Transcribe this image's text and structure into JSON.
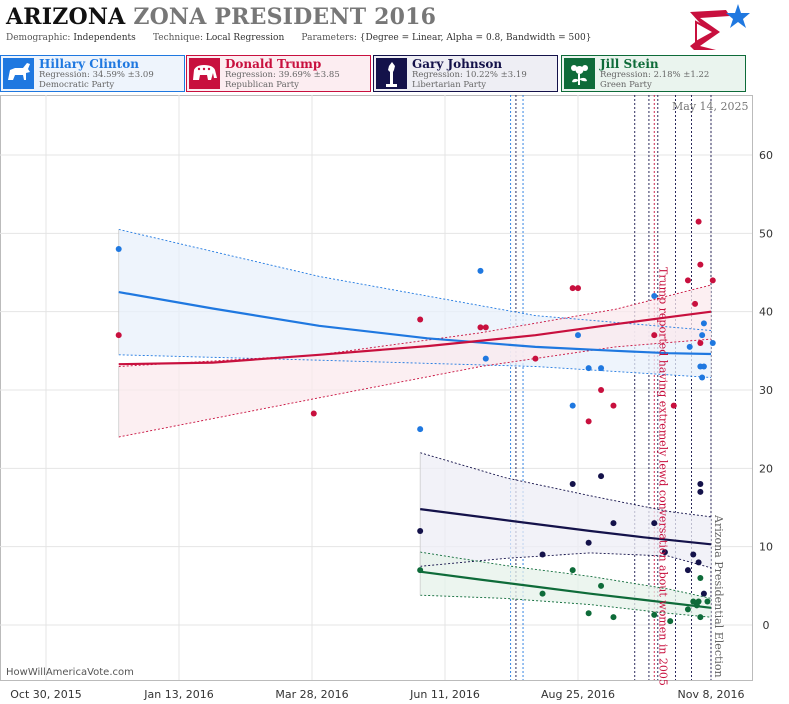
{
  "header": {
    "title_state": "ARIZONA",
    "title_rest": "ZONA PRESIDENT 2016",
    "demographic_label": "Demographic:",
    "demographic": "Independents",
    "technique_label": "Technique:",
    "technique": "Local Regression",
    "parameters_label": "Parameters:",
    "parameters": "{Degree = Linear, Alpha = 0.8, Bandwidth = 500}"
  },
  "candidates": [
    {
      "name": "Hillary Clinton",
      "regression": "Regression: 34.59% ±3.09",
      "party": "Democratic Party",
      "color": "#1f78e0",
      "bg": "#eef4fc",
      "icon": "donkey-icon"
    },
    {
      "name": "Donald Trump",
      "regression": "Regression: 39.69% ±3.85",
      "party": "Republican Party",
      "color": "#c8103e",
      "bg": "#fcedf1",
      "icon": "elephant-icon"
    },
    {
      "name": "Gary Johnson",
      "regression": "Regression: 10.22% ±3.19",
      "party": "Libertarian Party",
      "color": "#14124a",
      "bg": "#eeeef4",
      "icon": "liberty-torch-icon"
    },
    {
      "name": "Jill Stein",
      "regression": "Regression: 2.18% ±1.22",
      "party": "Green Party",
      "color": "#0e6b39",
      "bg": "#eaf4ee",
      "icon": "flower-icon"
    }
  ],
  "footer": {
    "watermark": "HowWillAmericaVote.com",
    "date": "May 14, 2025"
  },
  "chart_data": {
    "type": "scatter",
    "x_tick_labels": [
      "Oct 30, 2015",
      "Jan 13, 2016",
      "Mar 28, 2016",
      "Jun 11, 2016",
      "Aug 25, 2016",
      "Nov 8, 2016"
    ],
    "x_range": [
      "2015-10-30",
      "2016-11-08"
    ],
    "y_ticks": [
      0,
      10,
      20,
      30,
      40,
      50,
      60
    ],
    "ylim": [
      -4.5,
      65
    ],
    "annotations": [
      {
        "text": "Trump reported having extremely lewd conversation about women in 2005",
        "date": "2016-10-07",
        "color": "#c8103e"
      },
      {
        "text": "Arizona Presidential Election",
        "date": "2016-11-08",
        "color": "#666666"
      }
    ],
    "event_lines": [
      {
        "date": "2016-07-18",
        "color": "#1f78e0"
      },
      {
        "date": "2016-07-21",
        "color": "#14124a"
      },
      {
        "date": "2016-07-25",
        "color": "#1f78e0"
      },
      {
        "date": "2016-09-26",
        "color": "#14124a"
      },
      {
        "date": "2016-10-04",
        "color": "#14124a"
      },
      {
        "date": "2016-10-07",
        "color": "#c8103e"
      },
      {
        "date": "2016-10-09",
        "color": "#14124a"
      },
      {
        "date": "2016-10-19",
        "color": "#14124a"
      },
      {
        "date": "2016-10-28",
        "color": "#14124a"
      },
      {
        "date": "2016-11-08",
        "color": "#14124a"
      }
    ],
    "series": [
      {
        "name": "Hillary Clinton",
        "color": "#1f78e0",
        "band": "#e8f0fb",
        "points": [
          [
            "2015-12-10",
            48
          ],
          [
            "2016-05-28",
            25
          ],
          [
            "2016-07-01",
            45.2
          ],
          [
            "2016-07-04",
            34
          ],
          [
            "2016-08-25",
            37
          ],
          [
            "2016-08-31",
            32.8
          ],
          [
            "2016-09-07",
            32.8
          ],
          [
            "2016-08-22",
            28
          ],
          [
            "2016-10-07",
            42
          ],
          [
            "2016-10-27",
            35.5
          ],
          [
            "2016-11-02",
            33
          ],
          [
            "2016-11-03",
            31.6
          ],
          [
            "2016-11-04",
            33
          ],
          [
            "2016-11-03",
            37
          ],
          [
            "2016-11-04",
            38.5
          ],
          [
            "2016-11-09",
            36
          ]
        ],
        "fit": [
          [
            "2015-12-10",
            42.5
          ],
          [
            "2016-02-01",
            40.4
          ],
          [
            "2016-04-01",
            38.2
          ],
          [
            "2016-06-01",
            36.6
          ],
          [
            "2016-08-01",
            35.5
          ],
          [
            "2016-09-15",
            35
          ],
          [
            "2016-10-15",
            34.7
          ],
          [
            "2016-11-08",
            34.6
          ]
        ],
        "upper": [
          [
            "2015-12-10",
            50.5
          ],
          [
            "2016-04-01",
            44.5
          ],
          [
            "2016-08-01",
            39.5
          ],
          [
            "2016-11-08",
            37.6
          ]
        ],
        "lower": [
          [
            "2015-12-10",
            34.5
          ],
          [
            "2016-04-01",
            33.8
          ],
          [
            "2016-08-01",
            33
          ],
          [
            "2016-11-08",
            31.6
          ]
        ]
      },
      {
        "name": "Donald Trump",
        "color": "#c8103e",
        "band": "#fbe9ee",
        "points": [
          [
            "2015-12-10",
            37
          ],
          [
            "2016-03-29",
            27
          ],
          [
            "2016-05-28",
            39
          ],
          [
            "2016-07-01",
            38
          ],
          [
            "2016-07-04",
            38
          ],
          [
            "2016-08-01",
            34
          ],
          [
            "2016-08-22",
            43
          ],
          [
            "2016-08-25",
            43
          ],
          [
            "2016-08-31",
            26
          ],
          [
            "2016-09-07",
            30
          ],
          [
            "2016-09-14",
            28
          ],
          [
            "2016-10-07",
            37
          ],
          [
            "2016-10-18",
            28
          ],
          [
            "2016-10-26",
            44
          ],
          [
            "2016-10-30",
            41
          ],
          [
            "2016-11-01",
            51.5
          ],
          [
            "2016-11-02",
            46
          ],
          [
            "2016-11-02",
            36
          ],
          [
            "2016-11-09",
            44
          ]
        ],
        "fit": [
          [
            "2015-12-10",
            33.3
          ],
          [
            "2016-02-01",
            33.5
          ],
          [
            "2016-04-01",
            34.5
          ],
          [
            "2016-06-01",
            35.6
          ],
          [
            "2016-08-01",
            37
          ],
          [
            "2016-09-15",
            38.4
          ],
          [
            "2016-10-15",
            39.3
          ],
          [
            "2016-11-08",
            40
          ]
        ],
        "upper": [
          [
            "2015-12-10",
            33
          ],
          [
            "2016-04-01",
            34.5
          ],
          [
            "2016-07-01",
            37.3
          ],
          [
            "2016-09-15",
            40.3
          ],
          [
            "2016-11-08",
            43.4
          ]
        ],
        "lower": [
          [
            "2015-12-10",
            24
          ],
          [
            "2016-04-01",
            29
          ],
          [
            "2016-07-01",
            33
          ],
          [
            "2016-09-15",
            35.5
          ],
          [
            "2016-11-08",
            36.5
          ]
        ]
      },
      {
        "name": "Gary Johnson",
        "color": "#14124a",
        "band": "#eeeef5",
        "points": [
          [
            "2016-05-28",
            12
          ],
          [
            "2016-08-05",
            9
          ],
          [
            "2016-08-22",
            18
          ],
          [
            "2016-08-31",
            10.5
          ],
          [
            "2016-09-07",
            19
          ],
          [
            "2016-09-14",
            13
          ],
          [
            "2016-10-07",
            13
          ],
          [
            "2016-10-13",
            9.3
          ],
          [
            "2016-10-26",
            7
          ],
          [
            "2016-10-29",
            9
          ],
          [
            "2016-11-01",
            8
          ],
          [
            "2016-11-02",
            17
          ],
          [
            "2016-11-02",
            18
          ],
          [
            "2016-11-04",
            4
          ]
        ],
        "fit": [
          [
            "2016-05-28",
            14.8
          ],
          [
            "2016-07-01",
            13.8
          ],
          [
            "2016-08-01",
            12.9
          ],
          [
            "2016-09-01",
            12
          ],
          [
            "2016-10-01",
            11.2
          ],
          [
            "2016-11-08",
            10.3
          ]
        ],
        "upper": [
          [
            "2016-05-28",
            22
          ],
          [
            "2016-07-15",
            18.8
          ],
          [
            "2016-09-01",
            16.5
          ],
          [
            "2016-10-15",
            14.5
          ],
          [
            "2016-11-08",
            13.8
          ]
        ],
        "lower": [
          [
            "2016-05-28",
            7.5
          ],
          [
            "2016-07-15",
            8.5
          ],
          [
            "2016-09-01",
            9.2
          ],
          [
            "2016-10-15",
            8.8
          ],
          [
            "2016-11-08",
            7.3
          ]
        ]
      },
      {
        "name": "Jill Stein",
        "color": "#0e6b39",
        "band": "#e6f2ea",
        "points": [
          [
            "2016-05-28",
            7
          ],
          [
            "2016-08-05",
            4
          ],
          [
            "2016-08-22",
            7
          ],
          [
            "2016-08-31",
            1.5
          ],
          [
            "2016-09-07",
            5
          ],
          [
            "2016-09-14",
            1
          ],
          [
            "2016-10-07",
            1.3
          ],
          [
            "2016-10-16",
            0.5
          ],
          [
            "2016-10-26",
            2
          ],
          [
            "2016-10-29",
            3
          ],
          [
            "2016-10-31",
            2.5
          ],
          [
            "2016-11-01",
            3
          ],
          [
            "2016-11-02",
            1
          ],
          [
            "2016-11-02",
            6
          ],
          [
            "2016-11-06",
            3
          ]
        ],
        "fit": [
          [
            "2016-05-28",
            6.8
          ],
          [
            "2016-07-01",
            5.8
          ],
          [
            "2016-08-01",
            4.9
          ],
          [
            "2016-09-01",
            4
          ],
          [
            "2016-10-01",
            3.2
          ],
          [
            "2016-11-08",
            2.2
          ]
        ],
        "upper": [
          [
            "2016-05-28",
            9.3
          ],
          [
            "2016-07-15",
            7.6
          ],
          [
            "2016-09-01",
            6.2
          ],
          [
            "2016-10-15",
            4.6
          ],
          [
            "2016-11-08",
            3.4
          ]
        ],
        "lower": [
          [
            "2016-05-28",
            3.8
          ],
          [
            "2016-07-15",
            3.4
          ],
          [
            "2016-09-01",
            2.6
          ],
          [
            "2016-10-15",
            1.5
          ],
          [
            "2016-11-08",
            1
          ]
        ]
      }
    ]
  }
}
